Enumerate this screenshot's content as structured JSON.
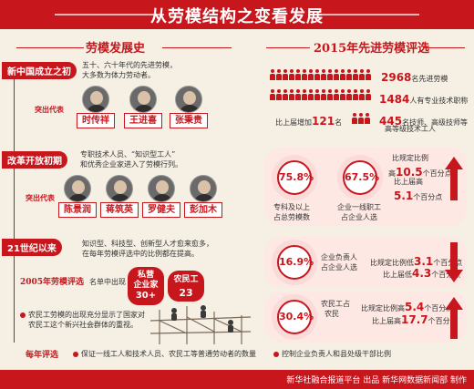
{
  "title": "从劳模结构之变看发展",
  "left_section_title": "劳模发展史",
  "right_section_title": "2015年先进劳模评选",
  "eras": [
    {
      "label": "新中国成立之初",
      "desc1": "五十、六十年代的先进劳模，",
      "desc2": "大多数为体力劳动者。",
      "rep_label": "突出代表",
      "names": [
        "时传祥",
        "王进喜",
        "张秉贵"
      ]
    },
    {
      "label": "改革开放初期",
      "desc1": "专职技术人员、“知识型工人”",
      "desc2": "和优秀企业家进入了劳模行列。",
      "rep_label": "突出代表",
      "names": [
        "陈景润",
        "蒋筑英",
        "罗健夫",
        "彭加木"
      ]
    },
    {
      "label": "21世纪以来",
      "desc1": "知识型、科技型、创新型人才愈来愈多，",
      "desc2": "在每年劳模评选中的比例都在提高。"
    }
  ],
  "eval2005": {
    "label": "2005年劳模评选",
    "list_label": "名单中出现",
    "pill1_l1": "私营",
    "pill1_l2": "企业家",
    "pill1_num": "30+",
    "pill2_l1": "农民工",
    "pill2_num": "23",
    "note1": "农民工劳模的出现充分显示了国家对",
    "note2": "农民工这个新兴社会群体的重视。"
  },
  "stats": [
    {
      "num": "2968",
      "text": "名先进劳模"
    },
    {
      "num": "1484",
      "text": "人有专业技术职称"
    },
    {
      "prefix": "比上届增加",
      "num": "121",
      "suffix": "名"
    },
    {
      "num": "445",
      "text": "名技师、高级技师等",
      "text2": "高等级技术工人"
    }
  ],
  "panel1": {
    "c1_pct": "75.8%",
    "c1_l1": "专科及以上",
    "c1_l2": "占总劳模数",
    "c2_pct": "67.5%",
    "c2_l1": "企业一线职工",
    "c2_l2": "占企业人选",
    "r1": "比规定比例",
    "r2a": "高",
    "r2num": "10.5",
    "r2b": "个百分点",
    "r3": "比上届高",
    "r4num": "5.1",
    "r4b": "个百分点"
  },
  "panel2": {
    "pct": "16.9%",
    "l1": "企业负责人",
    "l2": "占企业人选",
    "r1a": "比规定比例低",
    "r1num": "3.1",
    "r1b": "个百分点",
    "r2a": "比上届低",
    "r2num": "4.3",
    "r2b": "个百分点"
  },
  "panel3": {
    "pct": "30.4%",
    "l1": "农民工占",
    "l2": "农民",
    "r1a": "比规定比例高",
    "r1num": "5.4",
    "r1b": "个百分点",
    "r2a": "比上届高",
    "r2num": "17.7",
    "r2b": "个百分点"
  },
  "annual": {
    "label": "每年评选",
    "item1": "保证一线工人和技术人员、农民工等普通劳动者的数量",
    "item2": "控制企业负责人和县处级干部比例"
  },
  "footer": "新华社融合报道平台 出品    新华网数据新闻部 制作",
  "colors": {
    "primary": "#c8161d",
    "background": "#f5efe4",
    "panel": "#fde8e3"
  }
}
